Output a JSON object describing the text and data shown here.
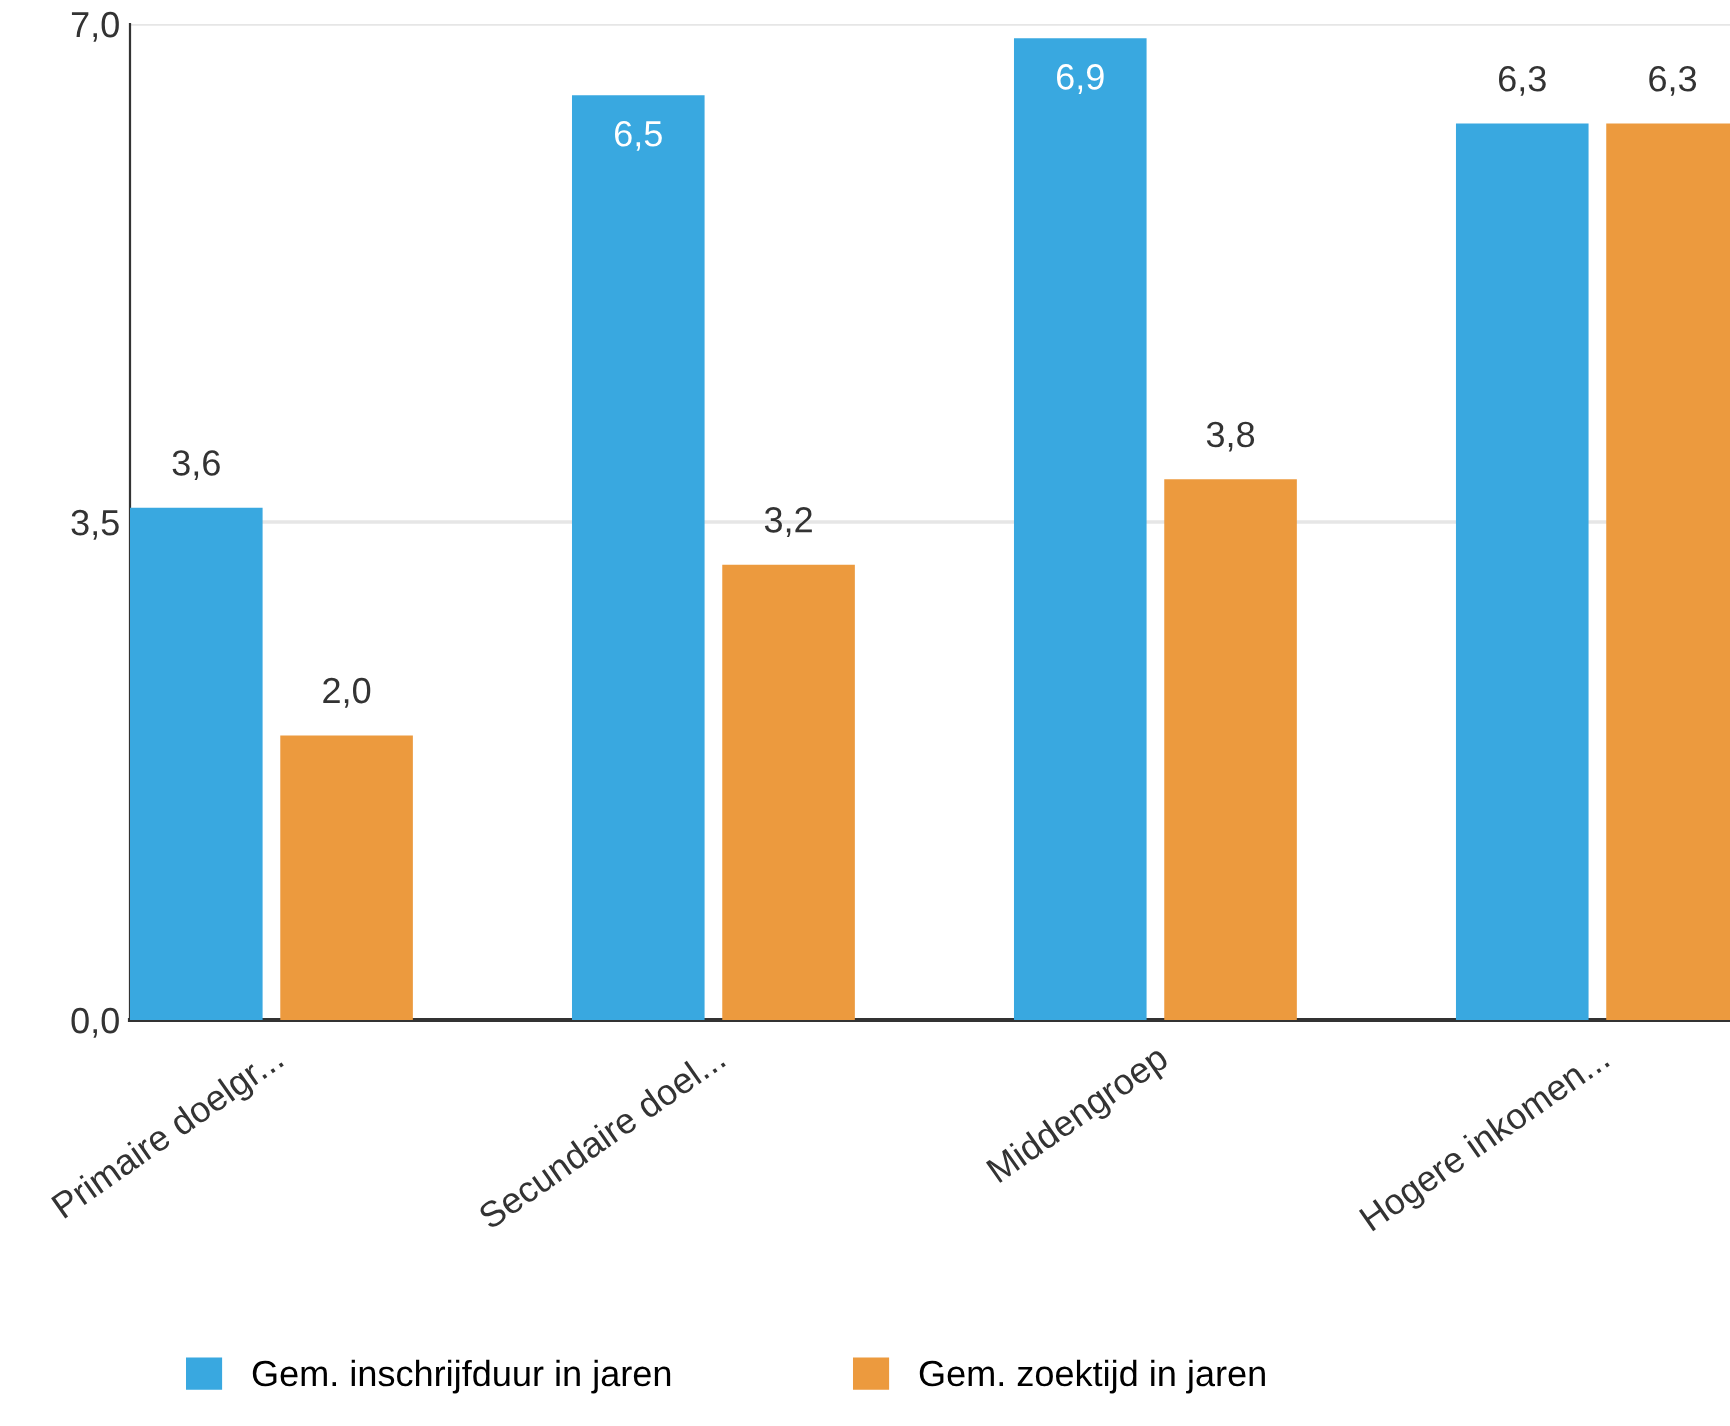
{
  "chart_data": {
    "type": "bar",
    "categories": [
      "Primaire doelgr...",
      "Secundaire doel...",
      "Middengroep",
      "Hogere inkomen..."
    ],
    "series": [
      {
        "name": "Gem. inschrijfduur in jaren",
        "color": "#39a8e0",
        "values": [
          3.6,
          6.5,
          6.9,
          6.3
        ],
        "value_labels": [
          "3,6",
          "6,5",
          "6,9",
          "6,3"
        ]
      },
      {
        "name": "Gem. zoektijd in jaren",
        "color": "#ec9a3e",
        "values": [
          2.0,
          3.2,
          3.8,
          6.3
        ],
        "value_labels": [
          "2,0",
          "3,2",
          "3,8",
          "6,3"
        ]
      }
    ],
    "ylim": [
      0,
      7
    ],
    "yticks": [
      {
        "value": 0,
        "label": "0,0"
      },
      {
        "value": 3.5,
        "label": "3,5"
      },
      {
        "value": 7,
        "label": "7,0"
      }
    ],
    "grid": "y",
    "legend": "bottom"
  }
}
